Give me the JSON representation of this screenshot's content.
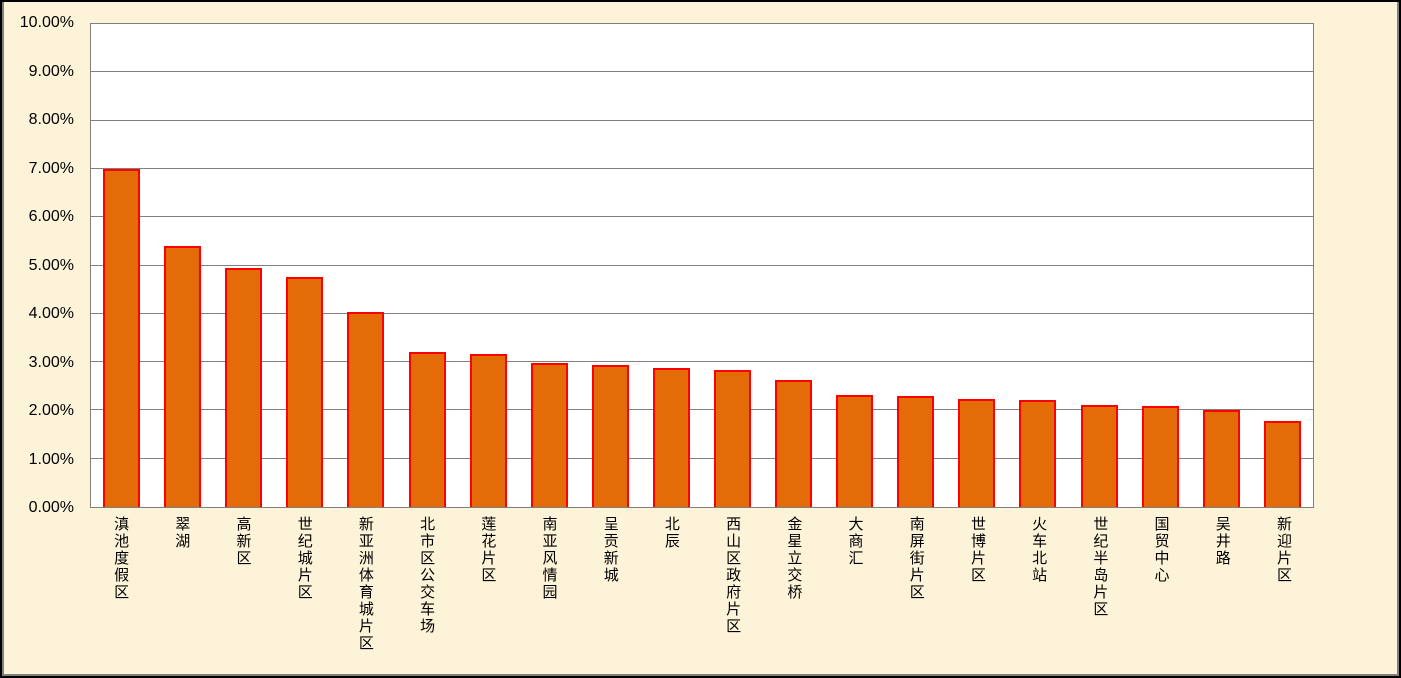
{
  "window": {
    "background": "#FDF3D8",
    "outer_border_color": "#000000",
    "inner_frame_color": "#808080"
  },
  "chart_data": {
    "type": "bar",
    "title": "",
    "xlabel": "",
    "ylabel": "",
    "legend": false,
    "grid": true,
    "ylim": [
      0,
      10
    ],
    "y_tick_step": 1,
    "y_tick_labels": [
      "0.00%",
      "1.00%",
      "2.00%",
      "3.00%",
      "4.00%",
      "5.00%",
      "6.00%",
      "7.00%",
      "8.00%",
      "9.00%",
      "10.00%"
    ],
    "categories": [
      "滇池度假区",
      "翠湖",
      "高新区",
      "世纪城片区",
      "新亚洲体育城片区",
      "北市区公交车场",
      "莲花片区",
      "南亚风情园",
      "呈贡新城",
      "北辰",
      "西山区政府片区",
      "金星立交桥",
      "大商汇",
      "南屏街片区",
      "世博片区",
      "火车北站",
      "世纪半岛片区",
      "国贸中心",
      "吴井路",
      "新迎片区"
    ],
    "values": [
      7.0,
      5.4,
      4.94,
      4.76,
      4.04,
      3.2,
      3.17,
      2.98,
      2.94,
      2.88,
      2.84,
      2.62,
      2.31,
      2.3,
      2.23,
      2.21,
      2.11,
      2.1,
      2.0,
      1.78
    ],
    "values_unit": "%",
    "bar_color": "#E36C09",
    "bar_border_color": "#FF0000",
    "gridline_color": "#808080",
    "axis_line_color": "#808080",
    "plot_background": "#FFFFFF"
  }
}
